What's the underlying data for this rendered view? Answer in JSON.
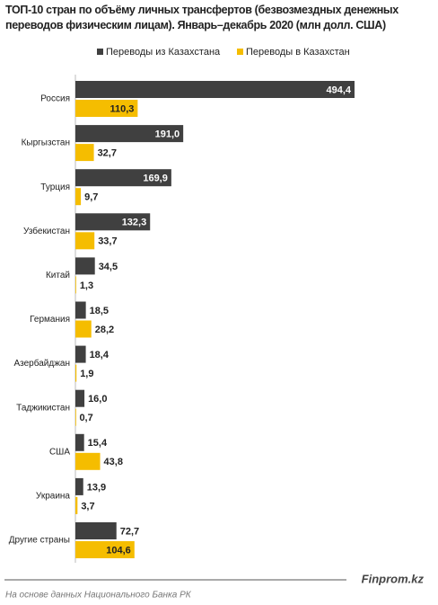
{
  "chart_data": {
    "type": "bar",
    "orientation": "horizontal",
    "title": "ТОП-10 стран по объёму личных трансфертов (безвозмездных денежных переводов физическим лицам). Январь–декабрь 2020  (млн долл. США)",
    "categories": [
      "Россия",
      "Кыргызстан",
      "Турция",
      "Узбекистан",
      "Китай",
      "Германия",
      "Азербайджан",
      "Таджикистан",
      "США",
      "Украина",
      "Другие страны"
    ],
    "series": [
      {
        "name": "Переводы из Казахстана",
        "color": "#404040",
        "values": [
          494.4,
          191.0,
          169.9,
          132.3,
          34.5,
          18.5,
          18.4,
          16.0,
          15.4,
          13.9,
          72.7
        ],
        "value_labels": [
          "494,4",
          "191,0",
          "169,9",
          "132,3",
          "34,5",
          "18,5",
          "18,4",
          "16,0",
          "15,4",
          "13,9",
          "72,7"
        ]
      },
      {
        "name": "Переводы в Казахстан",
        "color": "#f5bd00",
        "values": [
          110.3,
          32.7,
          9.7,
          33.7,
          1.3,
          28.2,
          1.9,
          0.7,
          43.8,
          3.7,
          104.6
        ],
        "value_labels": [
          "110,3",
          "32,7",
          "9,7",
          "33,7",
          "1,3",
          "28,2",
          "1,9",
          "0,7",
          "43,8",
          "3,7",
          "104,6"
        ]
      }
    ],
    "brand": "Finprom.kz",
    "source": "На основе данных Национального  Банка РК"
  }
}
